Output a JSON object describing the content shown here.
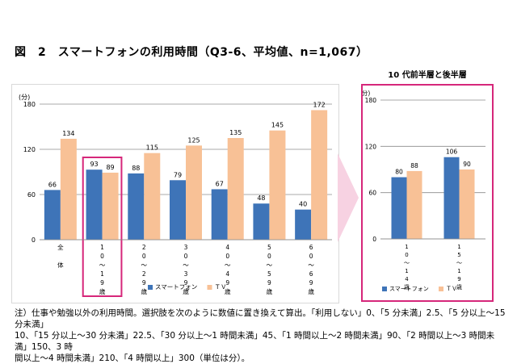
{
  "figure": {
    "title": "図　2　スマートフォンの利用時間（Q3-6、平均値、n=1,067）",
    "sub_title": "10 代前半層と後半層"
  },
  "chart_data": [
    {
      "type": "bar",
      "ylabel": "(分)",
      "ylim": [
        0,
        180
      ],
      "yticks": [
        "0",
        "60",
        "120",
        "180"
      ],
      "categories": [
        [
          "全",
          "",
          "体"
        ],
        [
          "1",
          "0",
          "～",
          "1",
          "9",
          "歳"
        ],
        [
          "2",
          "0",
          "～",
          "2",
          "9",
          "歳"
        ],
        [
          "3",
          "0",
          "～",
          "3",
          "9",
          "歳"
        ],
        [
          "4",
          "0",
          "～",
          "4",
          "9",
          "歳"
        ],
        [
          "5",
          "0",
          "～",
          "5",
          "9",
          "歳"
        ],
        [
          "6",
          "0",
          "～",
          "6",
          "9",
          "歳"
        ]
      ],
      "series": [
        {
          "name": "スマートフォン",
          "color": "#3e74b8",
          "values": [
            66,
            93,
            88,
            79,
            67,
            48,
            40
          ]
        },
        {
          "name": "ＴＶ",
          "color": "#f8c196",
          "values": [
            134,
            89,
            115,
            125,
            135,
            145,
            172
          ]
        }
      ],
      "highlight_category": 1,
      "highlight_color": "#d6277a",
      "legend": [
        "スマートフォン",
        "ＴＶ"
      ]
    },
    {
      "type": "bar",
      "title": "10 代前半層と後半層",
      "ylabel": "(分)",
      "ylim": [
        0,
        180
      ],
      "yticks": [
        "0",
        "60",
        "120",
        "180"
      ],
      "categories": [
        [
          "1",
          "0",
          "～",
          "1",
          "4",
          "歳"
        ],
        [
          "1",
          "5",
          "～",
          "1",
          "9",
          "歳"
        ]
      ],
      "series": [
        {
          "name": "スマートフォン",
          "color": "#3e74b8",
          "values": [
            80,
            106
          ]
        },
        {
          "name": "ＴＶ",
          "color": "#f8c196",
          "values": [
            88,
            90
          ]
        }
      ],
      "legend": [
        "スマートフォン",
        "ＴＶ"
      ]
    }
  ],
  "arrow_color": "#f7d2e2",
  "notes": [
    "注）仕事や勉強以外の利用時間。選択肢を次のように数値に置き換えて算出。「利用しない」0、「5 分未満」2.5、「5 分以上～15 分未満」",
    "10、「15 分以上～30 分未満」22.5、「30 分以上～1 時間未満」45、「1 時間以上～2 時間未満」90、「2 時間以上～3 時間未満」150、3 時",
    "間以上～4 時間未満」210、「4 時間以上」300（単位は分）。"
  ]
}
